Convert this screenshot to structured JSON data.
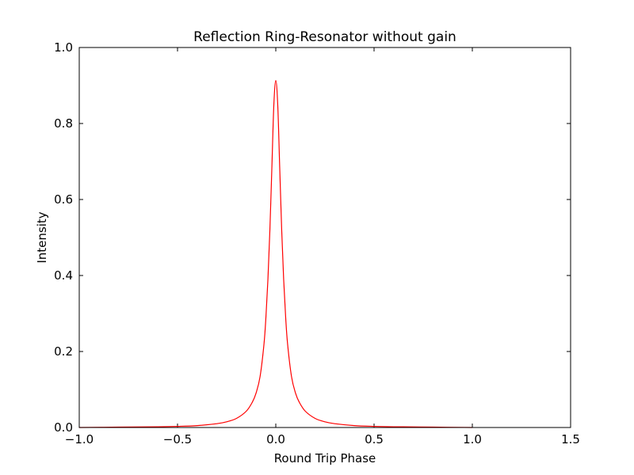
{
  "chart_data": {
    "type": "line",
    "title": "Reflection Ring-Resonator without gain",
    "xlabel": "Round Trip Phase",
    "ylabel": "Intensity",
    "xlim": [
      -1.0,
      1.5
    ],
    "ylim": [
      0.0,
      1.0
    ],
    "xticks": [
      -1.0,
      -0.5,
      0.0,
      0.5,
      1.0,
      1.5
    ],
    "xtick_labels": [
      "−1.0",
      "−0.5",
      "0.0",
      "0.5",
      "1.0",
      "1.5"
    ],
    "yticks": [
      0.0,
      0.2,
      0.4,
      0.6,
      0.8,
      1.0
    ],
    "ytick_labels": [
      "0.0",
      "0.2",
      "0.4",
      "0.6",
      "0.8",
      "1.0"
    ],
    "grid": false,
    "legend": "none",
    "series": [
      {
        "color": "#ff0000",
        "x": [
          -1.0,
          -0.8,
          -0.6,
          -0.5,
          -0.4,
          -0.3,
          -0.25,
          -0.2,
          -0.15,
          -0.12,
          -0.1,
          -0.08,
          -0.06,
          -0.05,
          -0.04,
          -0.03,
          -0.02,
          -0.01,
          0.0,
          0.01,
          0.02,
          0.03,
          0.04,
          0.05,
          0.06,
          0.08,
          0.1,
          0.12,
          0.15,
          0.2,
          0.25,
          0.3,
          0.4,
          0.5,
          0.6,
          0.8,
          1.0
        ],
        "y": [
          0.0,
          0.001,
          0.002,
          0.003,
          0.005,
          0.01,
          0.015,
          0.024,
          0.043,
          0.066,
          0.091,
          0.134,
          0.22,
          0.292,
          0.39,
          0.52,
          0.683,
          0.848,
          0.913,
          0.848,
          0.683,
          0.52,
          0.39,
          0.292,
          0.22,
          0.134,
          0.091,
          0.066,
          0.043,
          0.024,
          0.015,
          0.01,
          0.005,
          0.003,
          0.002,
          0.001,
          0.0
        ]
      }
    ]
  }
}
